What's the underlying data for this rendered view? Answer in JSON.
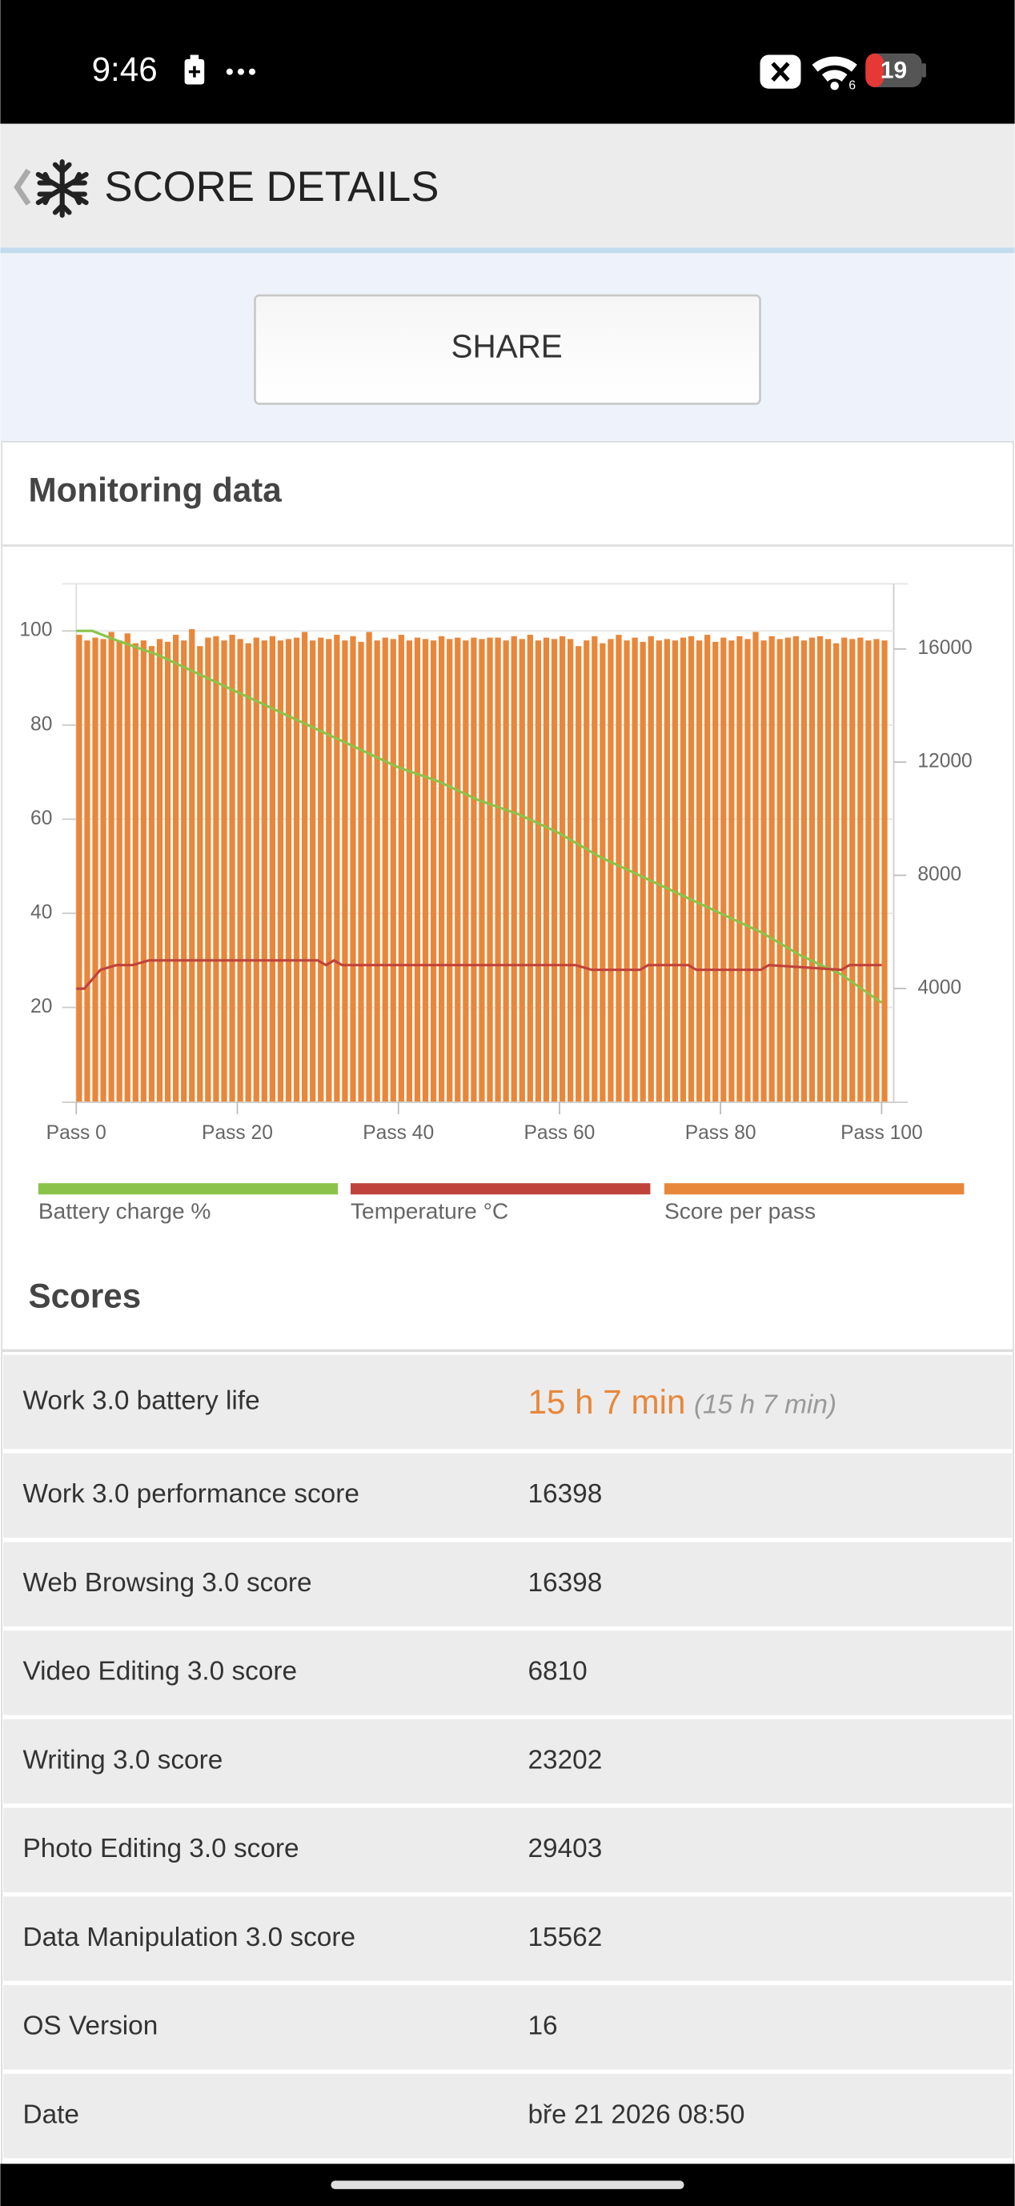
{
  "status_bar": {
    "time": "9:46",
    "battery": "19"
  },
  "header": {
    "title": "SCORE DETAILS"
  },
  "share_button": "SHARE",
  "monitoring": {
    "title": "Monitoring data"
  },
  "chart_data": {
    "type": "combo",
    "xlim": [
      0,
      101.5
    ],
    "ylim": [
      0,
      110
    ],
    "y2lim": [
      0,
      18300
    ],
    "xticks": [
      {
        "value": 0,
        "label": "Pass 0"
      },
      {
        "value": 20,
        "label": "Pass 20"
      },
      {
        "value": 40,
        "label": "Pass 40"
      },
      {
        "value": 60,
        "label": "Pass 60"
      },
      {
        "value": 80,
        "label": "Pass 80"
      },
      {
        "value": 100,
        "label": "Pass 100"
      }
    ],
    "yticks": [
      20,
      40,
      60,
      80,
      100
    ],
    "y2ticks": [
      4000,
      8000,
      12000,
      16000
    ],
    "grid": true,
    "legend": "bottom",
    "series": [
      {
        "name": "Battery charge %",
        "color": "#8bc34a",
        "type": "line",
        "x": [
          0,
          2,
          5,
          10,
          15,
          20,
          25,
          30,
          35,
          40,
          45,
          50,
          55,
          60,
          65,
          70,
          75,
          80,
          85,
          90,
          95,
          100
        ],
        "values": [
          100,
          100,
          98,
          95,
          91,
          87,
          83,
          79,
          75,
          71,
          68,
          64,
          61,
          57,
          52,
          48,
          44,
          40,
          36,
          31,
          27,
          21
        ]
      },
      {
        "name": "Temperature °C",
        "color": "#c0433b",
        "type": "line",
        "x": [
          0,
          1,
          2,
          3,
          5,
          7,
          9,
          30,
          31,
          32,
          33,
          62,
          64,
          70,
          71,
          76,
          77,
          85,
          86,
          95,
          96,
          100
        ],
        "values": [
          24,
          24,
          26,
          28,
          29,
          29,
          30,
          30,
          29,
          30,
          29,
          29,
          28,
          28,
          29,
          29,
          28,
          28,
          29,
          28,
          29,
          29
        ]
      },
      {
        "name": "Score per pass",
        "color": "#e8873a",
        "type": "bar",
        "axis": "y2",
        "x": [
          0,
          1,
          2,
          3,
          4,
          5,
          6,
          7,
          8,
          9,
          10,
          11,
          12,
          13,
          14,
          15,
          16,
          17,
          18,
          19,
          20,
          21,
          22,
          23,
          24,
          25,
          26,
          27,
          28,
          29,
          30,
          31,
          32,
          33,
          34,
          35,
          36,
          37,
          38,
          39,
          40,
          41,
          42,
          43,
          44,
          45,
          46,
          47,
          48,
          49,
          50,
          51,
          52,
          53,
          54,
          55,
          56,
          57,
          58,
          59,
          60,
          61,
          62,
          63,
          64,
          65,
          66,
          67,
          68,
          69,
          70,
          71,
          72,
          73,
          74,
          75,
          76,
          77,
          78,
          79,
          80,
          81,
          82,
          83,
          84,
          85,
          86,
          87,
          88,
          89,
          90,
          91,
          92,
          93,
          94,
          95,
          96,
          97,
          98,
          99,
          100
        ],
        "values": [
          16500,
          16300,
          16400,
          16350,
          16600,
          16300,
          16550,
          16200,
          16300,
          16100,
          16350,
          16250,
          16500,
          16300,
          16700,
          16100,
          16400,
          16450,
          16300,
          16500,
          16350,
          16200,
          16400,
          16300,
          16450,
          16300,
          16350,
          16400,
          16600,
          16300,
          16400,
          16350,
          16500,
          16300,
          16450,
          16250,
          16600,
          16300,
          16400,
          16350,
          16500,
          16300,
          16400,
          16350,
          16300,
          16450,
          16350,
          16400,
          16300,
          16400,
          16350,
          16400,
          16400,
          16300,
          16450,
          16350,
          16500,
          16300,
          16400,
          16350,
          16450,
          16350,
          16100,
          16300,
          16450,
          16200,
          16350,
          16500,
          16300,
          16400,
          16250,
          16450,
          16300,
          16350,
          16300,
          16400,
          16450,
          16300,
          16500,
          16250,
          16400,
          16300,
          16450,
          16350,
          16600,
          16300,
          16450,
          16350,
          16400,
          16450,
          16300,
          16400,
          16450,
          16350,
          16200,
          16400,
          16350,
          16400,
          16300,
          16350,
          16300
        ]
      }
    ]
  },
  "scores": {
    "title": "Scores",
    "rows": [
      [
        "Work 3.0 battery life",
        "15 h 7 min",
        "(15 h 7 min)"
      ],
      [
        "Work 3.0 performance score",
        "16398"
      ],
      [
        "Web Browsing 3.0 score",
        "16398"
      ],
      [
        "Video Editing 3.0 score",
        "6810"
      ],
      [
        "Writing 3.0 score",
        "23202"
      ],
      [
        "Photo Editing 3.0 score",
        "29403"
      ],
      [
        "Data Manipulation 3.0 score",
        "15562"
      ],
      [
        "OS Version",
        "16"
      ],
      [
        "Date",
        "bře 21 2026 08:50"
      ]
    ]
  }
}
